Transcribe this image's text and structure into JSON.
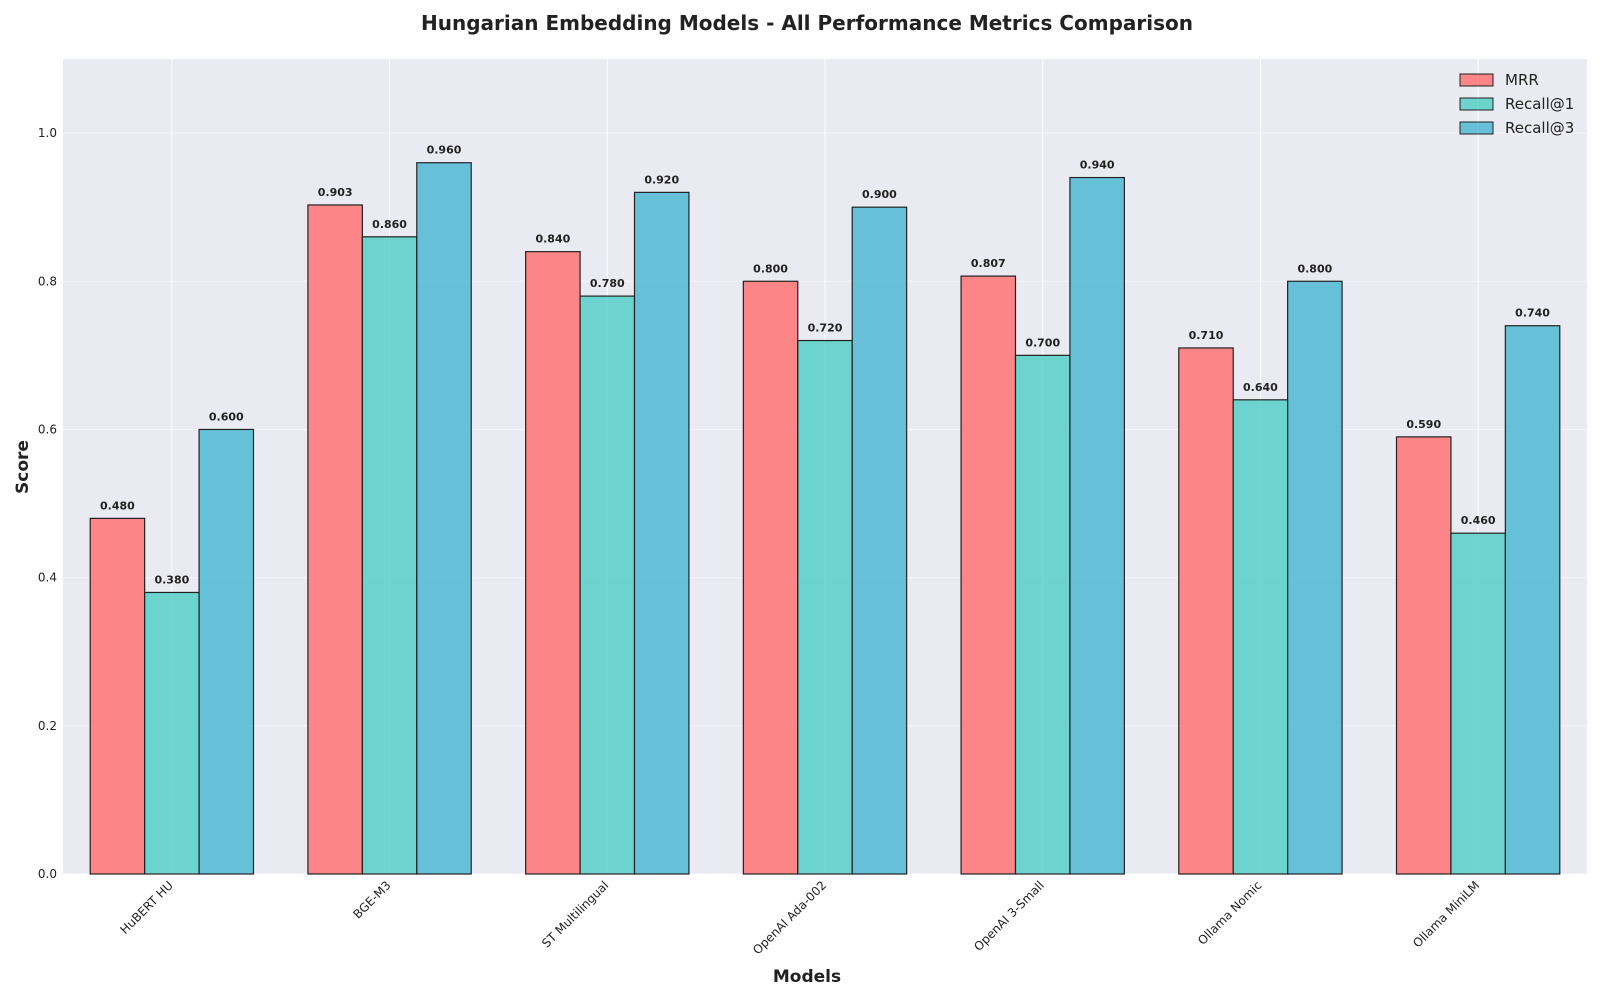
{
  "chart_data": {
    "type": "bar",
    "title": "Hungarian Embedding Models - All Performance Metrics Comparison",
    "xlabel": "Models",
    "ylabel": "Score",
    "ylim": [
      0,
      1.1
    ],
    "yticks": [
      "0.0",
      "0.2",
      "0.4",
      "0.6",
      "0.8",
      "1.0"
    ],
    "ytick_values": [
      0,
      0.2,
      0.4,
      0.6,
      0.8,
      1.0
    ],
    "grid": true,
    "legend_position": "top-right",
    "categories": [
      "HuBERT HU",
      "BGE-M3",
      "ST Multilingual",
      "OpenAI Ada-002",
      "OpenAI 3-Small",
      "Ollama Nomic",
      "Ollama MiniLM"
    ],
    "series": [
      {
        "name": "MRR",
        "color": "#FF6B6B",
        "values": [
          0.48,
          0.903,
          0.84,
          0.8,
          0.807,
          0.71,
          0.59
        ],
        "labels": [
          "0.480",
          "0.903",
          "0.840",
          "0.800",
          "0.807",
          "0.710",
          "0.590"
        ]
      },
      {
        "name": "Recall@1",
        "color": "#4ECDC4",
        "values": [
          0.38,
          0.86,
          0.78,
          0.72,
          0.7,
          0.64,
          0.46
        ],
        "labels": [
          "0.380",
          "0.860",
          "0.780",
          "0.720",
          "0.700",
          "0.640",
          "0.460"
        ]
      },
      {
        "name": "Recall@3",
        "color": "#45B7D1",
        "values": [
          0.6,
          0.96,
          0.92,
          0.9,
          0.94,
          0.8,
          0.74
        ],
        "labels": [
          "0.600",
          "0.960",
          "0.920",
          "0.900",
          "0.940",
          "0.800",
          "0.740"
        ]
      }
    ],
    "plot_background": "#EAEAF2"
  }
}
